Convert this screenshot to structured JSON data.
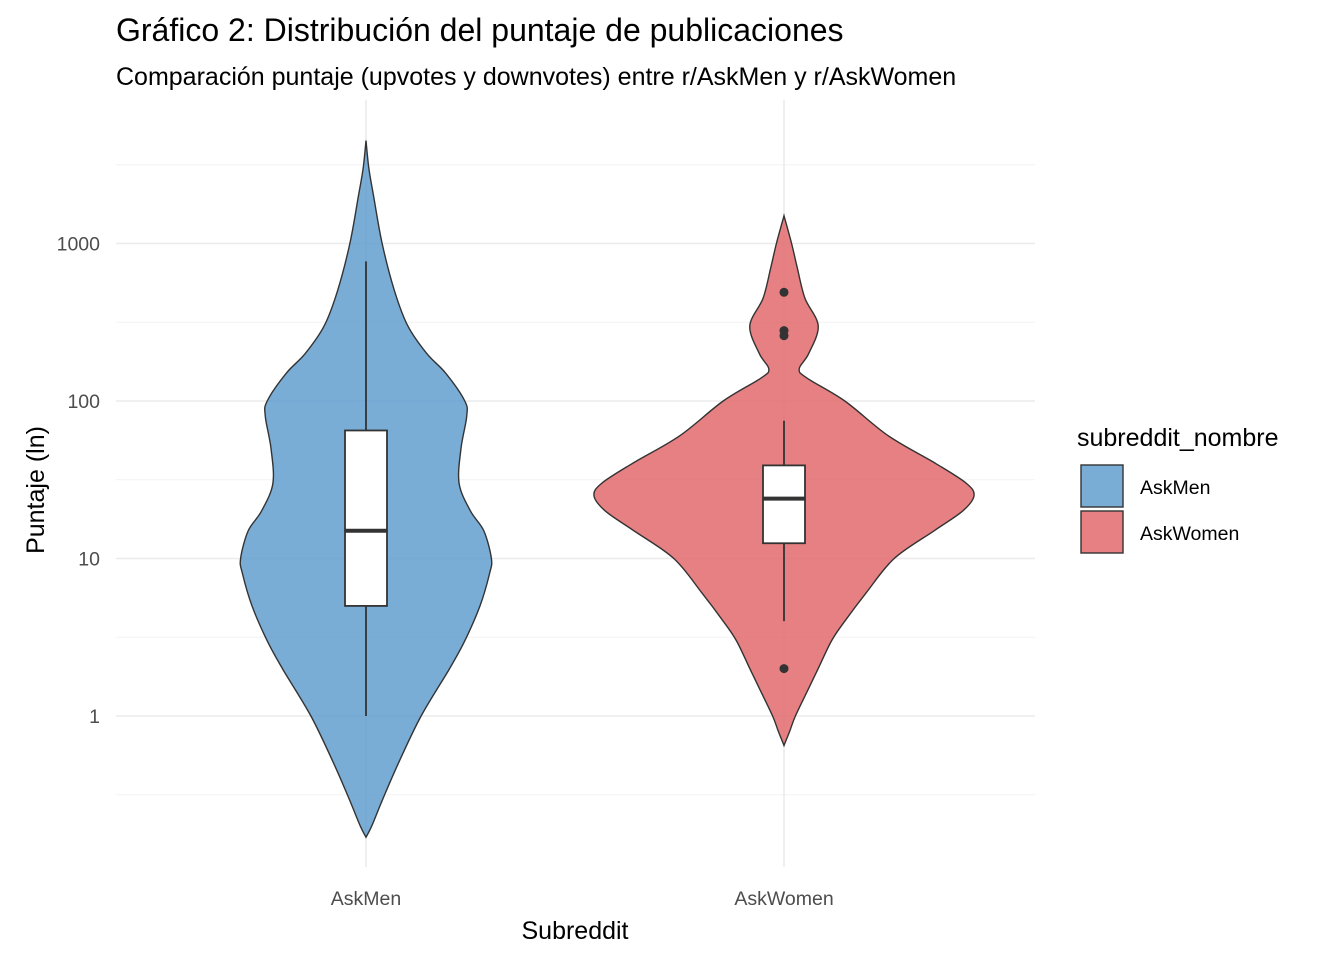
{
  "chart_data": {
    "type": "violin",
    "title": "Gráfico 2: Distribución del puntaje de publicaciones",
    "subtitle": "Comparación puntaje (upvotes y downvotes) entre r/AskMen y r/AskWomen",
    "xlabel": "Subreddit",
    "ylabel": "Puntaje (ln)",
    "y_scale": "log10",
    "ylim": [
      0.15,
      4500
    ],
    "y_ticks": [
      1,
      10,
      100,
      1000
    ],
    "y_tick_labels": [
      "1",
      "10",
      "100",
      "1000"
    ],
    "categories": [
      "AskMen",
      "AskWomen"
    ],
    "grid": true,
    "legend": {
      "title": "subreddit_nombre",
      "position": "right",
      "entries": [
        {
          "label": "AskMen",
          "color": "#5B9BCD"
        },
        {
          "label": "AskWomen",
          "color": "#E06466"
        }
      ]
    },
    "series": [
      {
        "category": "AskMen",
        "color": "#5B9BCD",
        "violin": {
          "min": 0.17,
          "max": 4500,
          "density": [
            [
              0.17,
              0.0
            ],
            [
              0.2,
              0.03
            ],
            [
              0.3,
              0.09
            ],
            [
              0.5,
              0.17
            ],
            [
              1,
              0.29
            ],
            [
              2,
              0.44
            ],
            [
              3,
              0.52
            ],
            [
              5,
              0.6
            ],
            [
              8,
              0.65
            ],
            [
              10,
              0.66
            ],
            [
              15,
              0.62
            ],
            [
              20,
              0.55
            ],
            [
              30,
              0.49
            ],
            [
              50,
              0.5
            ],
            [
              80,
              0.53
            ],
            [
              100,
              0.52
            ],
            [
              150,
              0.42
            ],
            [
              200,
              0.32
            ],
            [
              300,
              0.22
            ],
            [
              500,
              0.15
            ],
            [
              1000,
              0.085
            ],
            [
              2000,
              0.04
            ],
            [
              3000,
              0.015
            ],
            [
              4500,
              0.0
            ]
          ]
        },
        "box": {
          "q1": 5,
          "median": 15,
          "q3": 65,
          "whisker_low": 1,
          "whisker_high": 770
        },
        "outliers": []
      },
      {
        "category": "AskWomen",
        "color": "#E06466",
        "violin": {
          "min": 0.65,
          "max": 1500,
          "density": [
            [
              0.65,
              0.0
            ],
            [
              0.8,
              0.03
            ],
            [
              1,
              0.06
            ],
            [
              1.5,
              0.13
            ],
            [
              2,
              0.18
            ],
            [
              3,
              0.25
            ],
            [
              4,
              0.32
            ],
            [
              6,
              0.43
            ],
            [
              10,
              0.58
            ],
            [
              15,
              0.79
            ],
            [
              20,
              0.94
            ],
            [
              25,
              1.0
            ],
            [
              30,
              0.96
            ],
            [
              40,
              0.8
            ],
            [
              60,
              0.55
            ],
            [
              100,
              0.32
            ],
            [
              140,
              0.12
            ],
            [
              160,
              0.08
            ],
            [
              200,
              0.13
            ],
            [
              300,
              0.18
            ],
            [
              450,
              0.11
            ],
            [
              700,
              0.07
            ],
            [
              1000,
              0.04
            ],
            [
              1500,
              0.0
            ]
          ]
        },
        "box": {
          "q1": 12.5,
          "median": 24,
          "q3": 39,
          "whisker_low": 4,
          "whisker_high": 75
        },
        "outliers": [
          2,
          260,
          280,
          490
        ]
      }
    ]
  }
}
